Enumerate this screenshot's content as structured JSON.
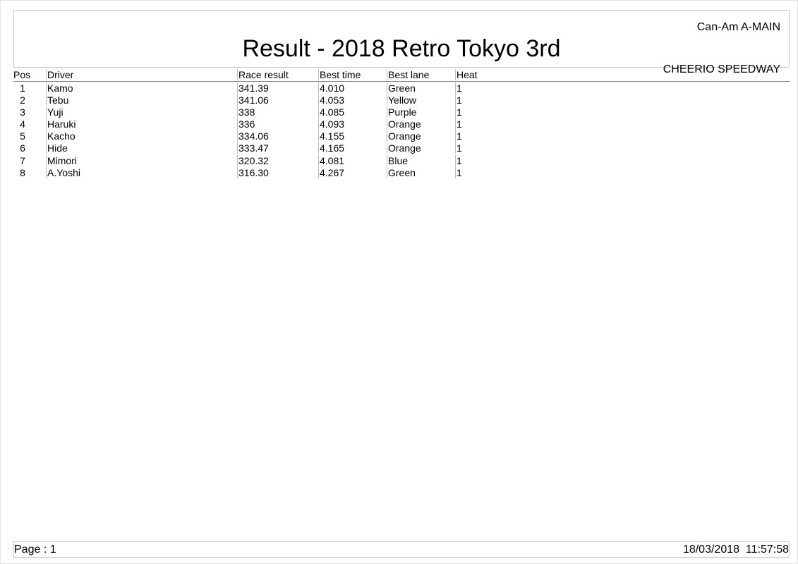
{
  "header": {
    "title": "Result - 2018 Retro Tokyo 3rd",
    "event": "Can-Am A-MAIN",
    "track": "CHEERIO SPEEDWAY"
  },
  "table": {
    "columns": [
      "Pos",
      "Driver",
      "Race result",
      "Best time",
      "Best lane",
      "Heat"
    ],
    "rows": [
      [
        "1",
        "Kamo",
        "341.39",
        "4.010",
        "Green",
        "1"
      ],
      [
        "2",
        "Tebu",
        "341.06",
        "4.053",
        "Yellow",
        "1"
      ],
      [
        "3",
        "Yuji",
        "338",
        "4.085",
        "Purple",
        "1"
      ],
      [
        "4",
        "Haruki",
        "336",
        "4.093",
        "Orange",
        "1"
      ],
      [
        "5",
        "Kacho",
        "334.06",
        "4.155",
        "Orange",
        "1"
      ],
      [
        "6",
        "Hide",
        "333.47",
        "4.165",
        "Orange",
        "1"
      ],
      [
        "7",
        "Mimori",
        "320.32",
        "4.081",
        "Blue",
        "1"
      ],
      [
        "8",
        "A.Yoshi",
        "316.30",
        "4.267",
        "Green",
        "1"
      ]
    ]
  },
  "footer": {
    "page": "Page : 1",
    "datetime": "18/03/2018  11:57:58"
  }
}
